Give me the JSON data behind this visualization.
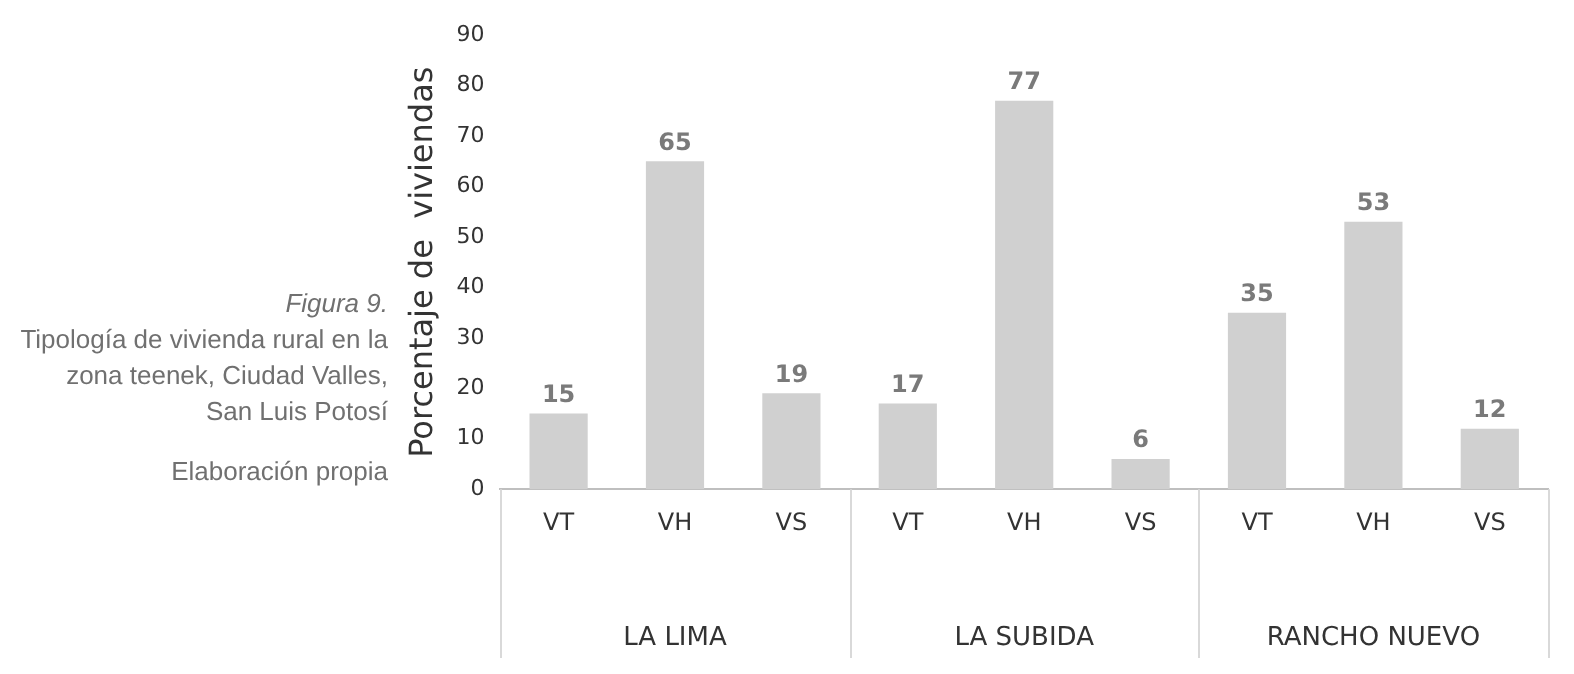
{
  "chart_data": {
    "type": "bar",
    "title": "Figura 9.",
    "subtitle": "Tipología de vivienda rural en la zona teenek, Ciudad Valles, San Luis Potosí",
    "ylabel": "Porcentaje de  viviendas",
    "categories": [
      "VT",
      "VH",
      "VS",
      "VT",
      "VH",
      "VS",
      "VT",
      "VH",
      "VS"
    ],
    "values": [
      15,
      65,
      19,
      17,
      77,
      6,
      35,
      53,
      12
    ],
    "color": "#d0d0d0",
    "ylim": [
      0,
      90
    ],
    "yticks": [
      0,
      10,
      20,
      30,
      40,
      50,
      60,
      70,
      80,
      90
    ],
    "grid": false,
    "legend": false,
    "data_labels": true,
    "annotations": [
      "Elaboración propia",
      "LA LIMA",
      "LA SUBIDA",
      "RANCHO NUEVO"
    ]
  }
}
